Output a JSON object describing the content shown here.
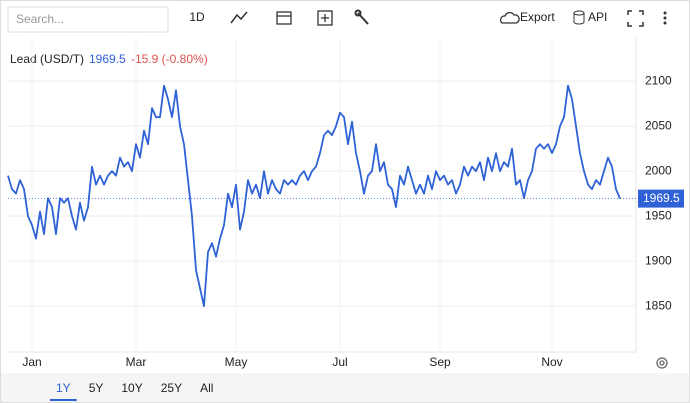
{
  "toolbar": {
    "search_placeholder": "Search...",
    "interval": "1D",
    "export": "Export",
    "api": "API"
  },
  "chart_data": {
    "type": "line",
    "title": "Lead (USD/T)",
    "change": "-15.9 (-0.80%)",
    "series": [
      {
        "name": "Lead",
        "color": "#2f62d6",
        "values": [
          1995,
          1980,
          1975,
          1990,
          1980,
          1950,
          1940,
          1925,
          1955,
          1930,
          1970,
          1960,
          1930,
          1970,
          1965,
          1970,
          1950,
          1935,
          1965,
          1945,
          1960,
          2005,
          1985,
          1995,
          1985,
          1995,
          2000,
          1995,
          2015,
          2005,
          2010,
          2000,
          2030,
          2015,
          2045,
          2030,
          2070,
          2060,
          2060,
          2095,
          2080,
          2060,
          2090,
          2050,
          2030,
          1990,
          1950,
          1890,
          1870,
          1850,
          1910,
          1920,
          1905,
          1925,
          1940,
          1975,
          1960,
          1985,
          1935,
          1955,
          1990,
          1975,
          1985,
          1970,
          2000,
          1975,
          1990,
          1980,
          1975,
          1990,
          1985,
          1990,
          1985,
          1995,
          2000,
          1990,
          2000,
          2005,
          2020,
          2040,
          2045,
          2040,
          2050,
          2065,
          2060,
          2030,
          2055,
          2020,
          2000,
          1975,
          1995,
          2000,
          2030,
          2000,
          2010,
          1985,
          1980,
          1960,
          1995,
          1985,
          2005,
          1990,
          1975,
          1985,
          1975,
          1995,
          1980,
          2000,
          1990,
          1995,
          1985,
          1990,
          1975,
          1985,
          2005,
          1995,
          2005,
          2000,
          2010,
          1990,
          2015,
          2000,
          2020,
          2000,
          2010,
          2005,
          2025,
          1985,
          1990,
          1970,
          1990,
          2000,
          2025,
          2030,
          2025,
          2030,
          2020,
          2030,
          2050,
          2060,
          2095,
          2080,
          2050,
          2020,
          2000,
          1985,
          1980,
          1990,
          1985,
          2000,
          2015,
          2005,
          1980,
          1969.5
        ]
      }
    ],
    "xlim": [
      0,
      157
    ],
    "xticks": [
      {
        "value": 6,
        "label": "Jan"
      },
      {
        "value": 32,
        "label": "Mar"
      },
      {
        "value": 57,
        "label": "May"
      },
      {
        "value": 83,
        "label": "Jul"
      },
      {
        "value": 108,
        "label": "Sep"
      },
      {
        "value": 136,
        "label": "Nov"
      }
    ],
    "ylim": [
      1799,
      2148
    ],
    "yticks": [
      1850,
      1900,
      1950,
      2000,
      2050,
      2100
    ],
    "grid": true
  },
  "ranges": [
    "1Y",
    "5Y",
    "10Y",
    "25Y",
    "All"
  ],
  "selected_range": "1Y"
}
